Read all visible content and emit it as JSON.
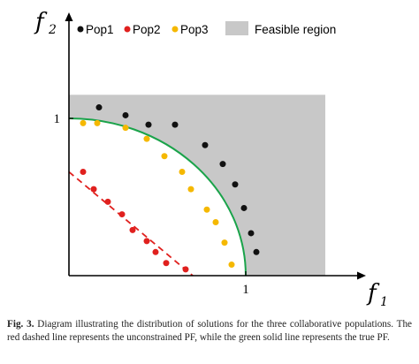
{
  "caption": {
    "label": "Fig. 3.",
    "text": "Diagram illustrating the distribution of solutions for the three collaborative populations. The red dashed line represents the unconstrained PF, while the green solid line represents the true PF."
  },
  "chart_data": {
    "type": "scatter",
    "xlabel": "f",
    "xlabel_sub": "1",
    "ylabel": "f",
    "ylabel_sub": "2",
    "xlim": [
      0,
      1.45
    ],
    "ylim": [
      0,
      1.15
    ],
    "x_ticks": [
      {
        "value": 1,
        "label": "1"
      }
    ],
    "y_ticks": [
      {
        "value": 1,
        "label": "1"
      }
    ],
    "grid": false,
    "legend_position": "top",
    "regions": [
      {
        "name": "Feasible region",
        "color": "#c8c8c8",
        "x_range": [
          0,
          1.45
        ],
        "y_range": [
          0,
          1.15
        ],
        "excluded": "quarter disc of radius 1 centred at origin"
      }
    ],
    "lines": [
      {
        "kind": "true PF",
        "shape": "quarter circle",
        "radius": 1,
        "color": "#1aa34a",
        "style": "solid"
      },
      {
        "kind": "unconstrained PF",
        "shape": "straight line",
        "from": [
          0,
          0.66
        ],
        "to": [
          0.7,
          0
        ],
        "color": "#e0201e",
        "style": "dashed"
      }
    ],
    "series": [
      {
        "name": "Pop1",
        "color": "#111111",
        "points": [
          [
            0.17,
            1.07
          ],
          [
            0.32,
            1.02
          ],
          [
            0.45,
            0.96
          ],
          [
            0.6,
            0.96
          ],
          [
            0.77,
            0.83
          ],
          [
            0.87,
            0.71
          ],
          [
            0.94,
            0.58
          ],
          [
            0.99,
            0.43
          ],
          [
            1.03,
            0.27
          ],
          [
            1.06,
            0.15
          ]
        ]
      },
      {
        "name": "Pop2",
        "color": "#e0201e",
        "points": [
          [
            0.08,
            0.66
          ],
          [
            0.14,
            0.55
          ],
          [
            0.22,
            0.47
          ],
          [
            0.3,
            0.39
          ],
          [
            0.36,
            0.29
          ],
          [
            0.44,
            0.22
          ],
          [
            0.49,
            0.15
          ],
          [
            0.55,
            0.08
          ],
          [
            0.66,
            0.04
          ]
        ]
      },
      {
        "name": "Pop3",
        "color": "#f5b800",
        "points": [
          [
            0.08,
            0.97
          ],
          [
            0.16,
            0.97
          ],
          [
            0.32,
            0.94
          ],
          [
            0.44,
            0.87
          ],
          [
            0.54,
            0.76
          ],
          [
            0.64,
            0.66
          ],
          [
            0.69,
            0.55
          ],
          [
            0.78,
            0.42
          ],
          [
            0.83,
            0.34
          ],
          [
            0.88,
            0.21
          ],
          [
            0.92,
            0.07
          ]
        ]
      }
    ]
  }
}
